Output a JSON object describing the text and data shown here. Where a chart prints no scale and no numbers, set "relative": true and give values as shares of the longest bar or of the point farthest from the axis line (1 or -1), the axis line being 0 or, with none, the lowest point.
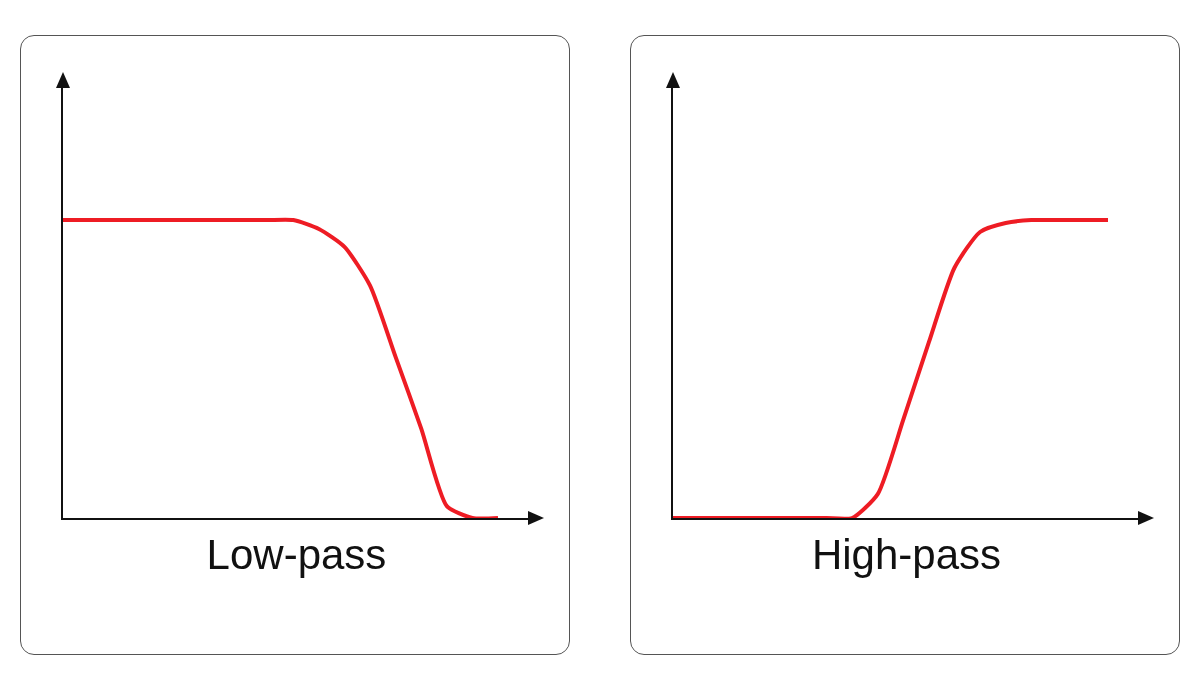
{
  "chart_data": [
    {
      "type": "line",
      "relative": true,
      "xlabel": "Low-pass",
      "categories": [
        null,
        null,
        null,
        null,
        null,
        null,
        null,
        null,
        null,
        null,
        null,
        null,
        null,
        null,
        null,
        null,
        null,
        null
      ],
      "color": "#ee1c24",
      "marker": "none",
      "grid": false,
      "legend": false,
      "values": [
        1,
        1,
        1,
        1,
        1,
        1,
        1,
        1,
        1,
        1,
        0.97,
        0.91,
        0.78,
        0.54,
        0.3,
        0.04,
        0,
        0
      ]
    },
    {
      "type": "line",
      "relative": true,
      "xlabel": "High-pass",
      "categories": [
        null,
        null,
        null,
        null,
        null,
        null,
        null,
        null,
        null,
        null,
        null,
        null,
        null,
        null,
        null,
        null,
        null,
        null
      ],
      "color": "#ee1c24",
      "marker": "none",
      "grid": false,
      "legend": false,
      "values": [
        0,
        0,
        0,
        0,
        0,
        0,
        0,
        0,
        0.08,
        0.33,
        0.59,
        0.84,
        0.96,
        0.99,
        1,
        1,
        1,
        1
      ]
    }
  ]
}
